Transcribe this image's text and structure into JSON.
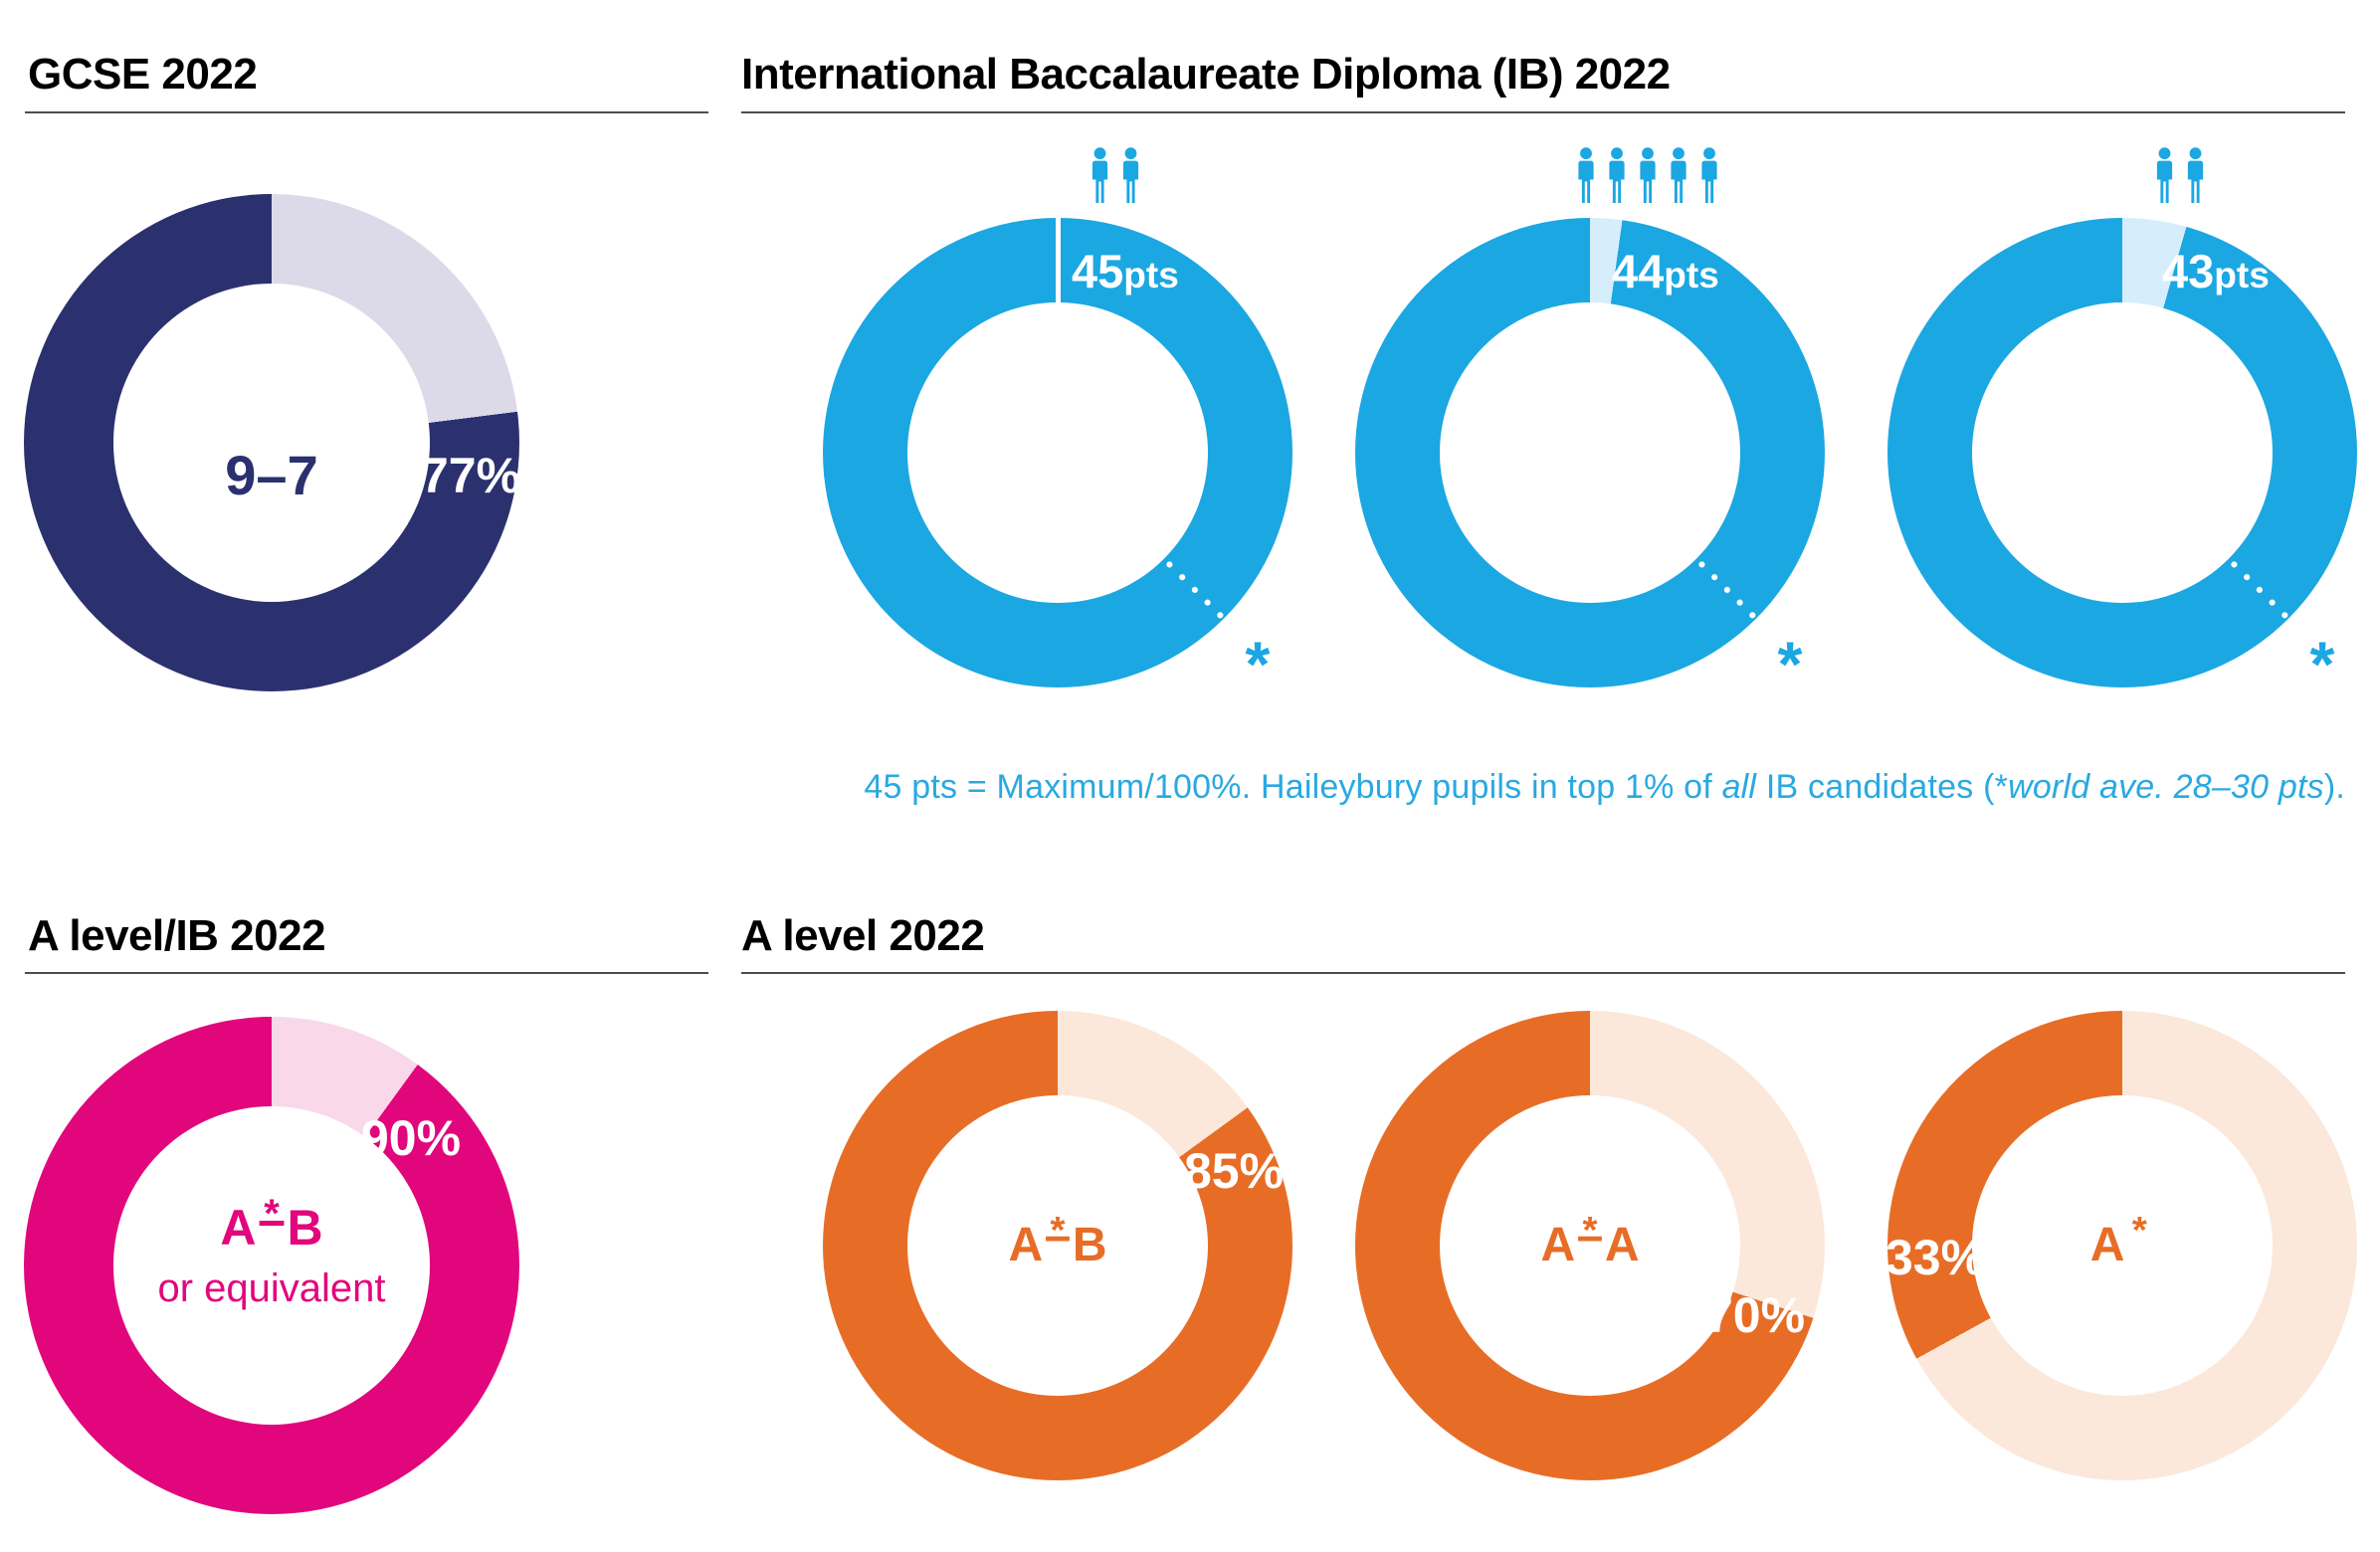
{
  "page": {
    "background": "#ffffff"
  },
  "sections": {
    "gcse": {
      "title": "GCSE 2022"
    },
    "ib": {
      "title": "International Baccalaureate Diploma (IB) 2022",
      "caption_color": "#29A9E1",
      "caption_segments": [
        {
          "text": "45 pts = Maximum/100%. Haileybury pupils in top 1% of ",
          "italic": false
        },
        {
          "text": "all",
          "italic": true
        },
        {
          "text": " IB candidates (*",
          "italic": false
        },
        {
          "text": "world ave. 28–30 pts",
          "italic": true
        },
        {
          "text": ").",
          "italic": false
        }
      ]
    },
    "alevel_ib": {
      "title": "A level/IB 2022"
    },
    "alevel": {
      "title": "A level 2022"
    }
  },
  "chart_data": {
    "type": "donut",
    "description": "Examination results infographic: eight donut charts showing 2022 GCSE, IB and A level outcomes",
    "charts": [
      {
        "id": "gcse-9-7",
        "section": "GCSE 2022",
        "center_label": "9–7",
        "pct": 77,
        "pct_label": "77%",
        "color": "#2B316E",
        "color_light": "#DCDAE9"
      },
      {
        "id": "ib-45pts",
        "section": "International Baccalaureate Diploma (IB) 2022",
        "points": 45,
        "points_label": "45",
        "points_unit": "pts",
        "pupils": 2,
        "pct": 100,
        "max_points": 45,
        "color": "#1BA7E2",
        "color_light": "#D6EEFB",
        "world_average_marker": "*"
      },
      {
        "id": "ib-44pts",
        "section": "International Baccalaureate Diploma (IB) 2022",
        "points": 44,
        "points_label": "44",
        "points_unit": "pts",
        "pupils": 5,
        "pct": 97.8,
        "max_points": 45,
        "color": "#1BA7E2",
        "color_light": "#D6EEFB",
        "world_average_marker": "*"
      },
      {
        "id": "ib-43pts",
        "section": "International Baccalaureate Diploma (IB) 2022",
        "points": 43,
        "points_label": "43",
        "points_unit": "pts",
        "pupils": 2,
        "pct": 95.6,
        "max_points": 45,
        "color": "#1BA7E2",
        "color_light": "#D6EEFB",
        "world_average_marker": "*"
      },
      {
        "id": "alevel-ib-a-star-to-b",
        "section": "A level/IB 2022",
        "grade_left": "A",
        "grade_star": "*",
        "grade_dash": "–",
        "grade_right": "B",
        "sub_label": "or equivalent",
        "pct": 90,
        "pct_label": "90%",
        "color": "#E2067C",
        "color_light": "#F9D8EA"
      },
      {
        "id": "alevel-a-star-to-b",
        "section": "A level 2022",
        "grade_left": "A",
        "grade_star": "*",
        "grade_dash": "–",
        "grade_right": "B",
        "sub_label": "",
        "pct": 85,
        "pct_label": "85%",
        "color": "#E76D26",
        "color_light": "#FBE8DB"
      },
      {
        "id": "alevel-a-star-to-a",
        "section": "A level 2022",
        "grade_left": "A",
        "grade_star": "*",
        "grade_dash": "–",
        "grade_right": "A",
        "sub_label": "",
        "pct": 70,
        "pct_label": "70%",
        "color": "#E76D26",
        "color_light": "#FBE8DB"
      },
      {
        "id": "alevel-a-star",
        "section": "A level 2022",
        "grade_left": "A",
        "grade_star": "*",
        "grade_dash": "",
        "grade_right": "",
        "sub_label": "",
        "pct": 33,
        "pct_label": "33%",
        "color": "#E76D26",
        "color_light": "#FBE8DB"
      }
    ]
  }
}
